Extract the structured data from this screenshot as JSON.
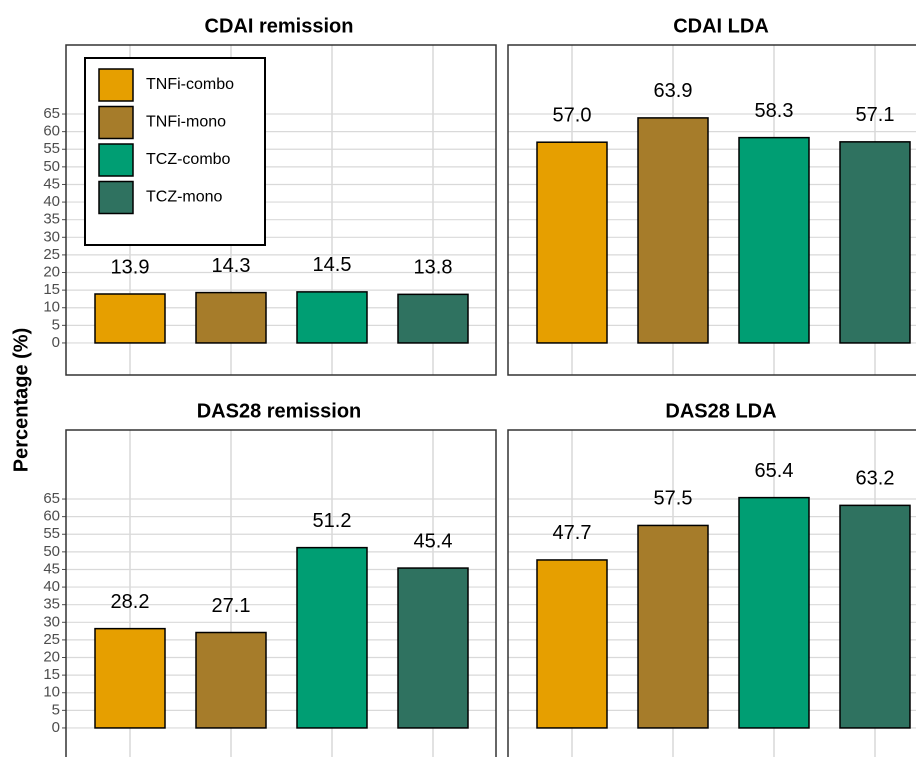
{
  "chart_data": [
    {
      "type": "bar",
      "title": "CDAI remission",
      "ylabel": "Percentage (%)",
      "legend": "top-left",
      "categories": [
        "TNFi-combo",
        "TNFi-mono",
        "TCZ-combo",
        "TCZ-mono"
      ],
      "colors": [
        "#e69f00",
        "#a67c2a",
        "#009e73",
        "#2f7260"
      ],
      "values": [
        13.9,
        14.3,
        14.5,
        13.8
      ],
      "value_labels": [
        "13.9",
        "14.3",
        "14.5",
        "13.8"
      ],
      "ylim": [
        -9.1,
        84.6
      ],
      "yticks": [
        0,
        5,
        10,
        15,
        20,
        25,
        30,
        35,
        40,
        45,
        50,
        55,
        60,
        65
      ],
      "grid": true
    },
    {
      "type": "bar",
      "title": "CDAI LDA",
      "categories": [
        "TNFi-combo",
        "TNFi-mono",
        "TCZ-combo",
        "TCZ-mono"
      ],
      "colors": [
        "#e69f00",
        "#a67c2a",
        "#009e73",
        "#2f7260"
      ],
      "values": [
        57.0,
        63.9,
        58.3,
        57.1
      ],
      "value_labels": [
        "57.0",
        "63.9",
        "58.3",
        "57.1"
      ],
      "ylim": [
        -9.1,
        84.6
      ],
      "yticks": [
        0,
        5,
        10,
        15,
        20,
        25,
        30,
        35,
        40,
        45,
        50,
        55,
        60,
        65
      ],
      "grid": true
    },
    {
      "type": "bar",
      "title": "DAS28 remission",
      "categories": [
        "TNFi-combo",
        "TNFi-mono",
        "TCZ-combo",
        "TCZ-mono"
      ],
      "colors": [
        "#e69f00",
        "#a67c2a",
        "#009e73",
        "#2f7260"
      ],
      "values": [
        28.2,
        27.1,
        51.2,
        45.4
      ],
      "value_labels": [
        "28.2",
        "27.1",
        "51.2",
        "45.4"
      ],
      "ylim": [
        -9.1,
        84.6
      ],
      "yticks": [
        0,
        5,
        10,
        15,
        20,
        25,
        30,
        35,
        40,
        45,
        50,
        55,
        60,
        65
      ],
      "grid": true
    },
    {
      "type": "bar",
      "title": "DAS28 LDA",
      "categories": [
        "TNFi-combo",
        "TNFi-mono",
        "TCZ-combo",
        "TCZ-mono"
      ],
      "colors": [
        "#e69f00",
        "#a67c2a",
        "#009e73",
        "#2f7260"
      ],
      "values": [
        47.7,
        57.5,
        65.4,
        63.2
      ],
      "value_labels": [
        "47.7",
        "57.5",
        "65.4",
        "63.2"
      ],
      "ylim": [
        -9.1,
        84.6
      ],
      "yticks": [
        0,
        5,
        10,
        15,
        20,
        25,
        30,
        35,
        40,
        45,
        50,
        55,
        60,
        65
      ],
      "grid": true
    }
  ]
}
